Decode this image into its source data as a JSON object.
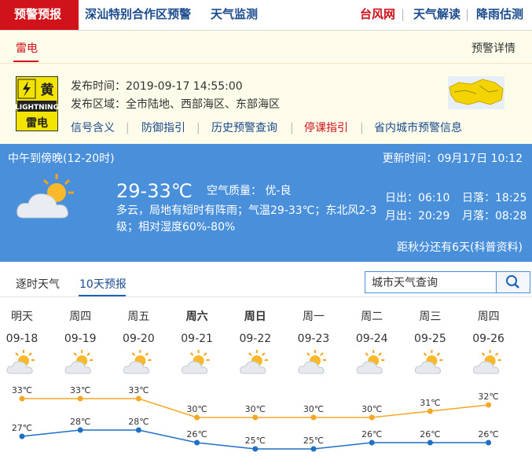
{
  "nav": {
    "active": "预警预报",
    "left": [
      "深汕特别合作区预警",
      "天气监测"
    ],
    "right": [
      "台风网",
      "天气解读",
      "降雨估测"
    ]
  },
  "alert": {
    "tab": "雷电",
    "detail_link": "预警详情",
    "icon": {
      "level": "黄",
      "en": "LIGHTNING",
      "cn": "雷电"
    },
    "time_label": "发布时间：",
    "time": "2019-09-17 14:55:00",
    "area_label": "发布区域：",
    "area": "全市陆地、西部海区、东部海区",
    "links": [
      "信号含义",
      "防御指引",
      "历史预警查询",
      "停课指引",
      "省内城市预警信息"
    ]
  },
  "now": {
    "period": "中午到傍晚(12-20时)",
    "update_label": "更新时间：",
    "update": "09月17日 10:12",
    "temp": "29-33℃",
    "aqi_label": "空气质量：",
    "aqi": "优-良",
    "desc": "多云，局地有短时有阵雨；气温29-33℃；东北风2-3级；相对湿度60%-80%",
    "sun": [
      {
        "label": "日出：",
        "value": "06:10"
      },
      {
        "label": "日落：",
        "value": "18:25"
      },
      {
        "label": "月出：",
        "value": "20:29"
      },
      {
        "label": "月落：",
        "value": "08:28"
      }
    ],
    "note": "距秋分还有6天(科普资料)"
  },
  "tabs": {
    "items": [
      "逐时天气",
      "10天预报"
    ],
    "search_placeholder": "城市天气查询"
  },
  "chart_data": {
    "type": "line",
    "weekdays": [
      "明天",
      "周四",
      "周五",
      "周六",
      "周日",
      "周一",
      "周二",
      "周三",
      "周四"
    ],
    "categories": [
      "09-18",
      "09-19",
      "09-20",
      "09-21",
      "09-22",
      "09-23",
      "09-24",
      "09-25",
      "09-26"
    ],
    "series": [
      {
        "color": "#f5a623",
        "values": [
          33,
          33,
          33,
          30,
          30,
          30,
          30,
          31,
          32
        ],
        "value_labels": [
          "33℃",
          "33℃",
          "33℃",
          "30℃",
          "30℃",
          "30℃",
          "30℃",
          "31℃",
          "32℃"
        ]
      },
      {
        "color": "#1f6fc5",
        "values": [
          27,
          28,
          28,
          26,
          25,
          25,
          26,
          26,
          26
        ],
        "value_labels": [
          "27℃",
          "28℃",
          "28℃",
          "26℃",
          "25℃",
          "25℃",
          "26℃",
          "26℃",
          "26℃"
        ]
      }
    ]
  }
}
